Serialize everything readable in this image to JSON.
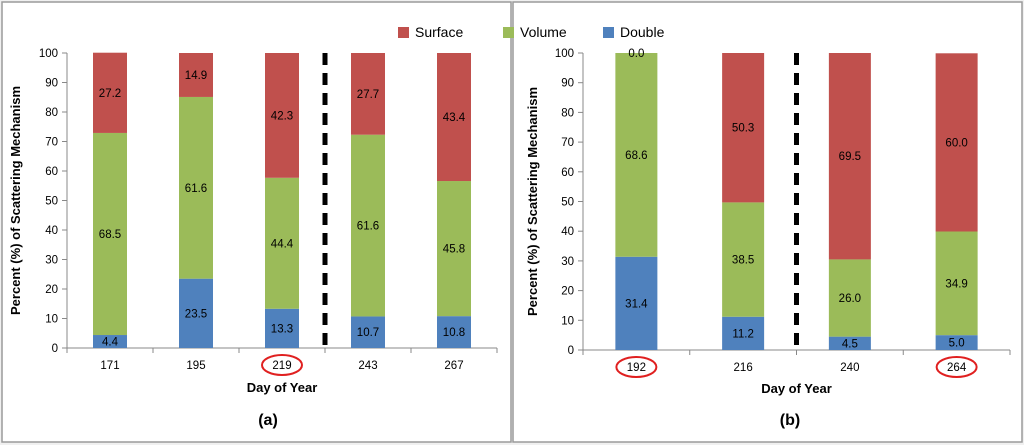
{
  "legend": [
    {
      "label": "Surface",
      "color": "#c0504d"
    },
    {
      "label": "Volume",
      "color": "#9bbb59"
    },
    {
      "label": "Double",
      "color": "#4f81bd"
    }
  ],
  "chart_data": [
    {
      "type": "bar",
      "stacked": true,
      "panel_label": "(a)",
      "xlabel": "Day of Year",
      "ylabel": "Percent (%) of Scattering Mechanism",
      "ylim": [
        0,
        100
      ],
      "yticks": [
        0,
        10,
        20,
        30,
        40,
        50,
        60,
        70,
        80,
        90,
        100
      ],
      "categories": [
        "171",
        "195",
        "219",
        "243",
        "267"
      ],
      "circled_categories": [
        "219"
      ],
      "divider_after_index": 2,
      "series": [
        {
          "name": "Double",
          "values": [
            4.4,
            23.5,
            13.3,
            10.7,
            10.8
          ]
        },
        {
          "name": "Volume",
          "values": [
            68.5,
            61.6,
            44.4,
            61.6,
            45.8
          ]
        },
        {
          "name": "Surface",
          "values": [
            27.2,
            14.9,
            42.3,
            27.7,
            43.4
          ]
        }
      ]
    },
    {
      "type": "bar",
      "stacked": true,
      "panel_label": "(b)",
      "xlabel": "Day of Year",
      "ylabel": "Percent (%) of Scattering Mechanism",
      "ylim": [
        0,
        100
      ],
      "yticks": [
        0,
        10,
        20,
        30,
        40,
        50,
        60,
        70,
        80,
        90,
        100
      ],
      "categories": [
        "192",
        "216",
        "240",
        "264"
      ],
      "circled_categories": [
        "192",
        "264"
      ],
      "divider_after_index": 1,
      "series": [
        {
          "name": "Double",
          "values": [
            31.4,
            11.2,
            4.5,
            5.0
          ]
        },
        {
          "name": "Volume",
          "values": [
            68.6,
            38.5,
            26.0,
            34.9
          ]
        },
        {
          "name": "Surface",
          "values": [
            0.0,
            50.3,
            69.5,
            60.0
          ]
        }
      ]
    }
  ]
}
